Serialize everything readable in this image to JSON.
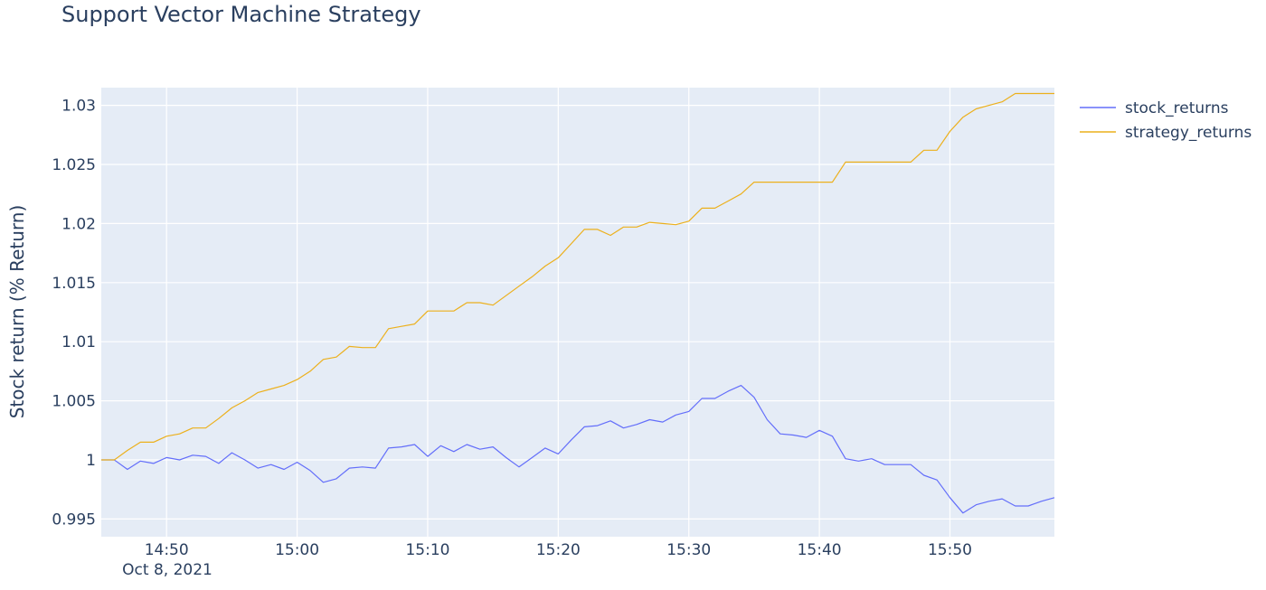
{
  "chart_data": {
    "type": "line",
    "title": "Support Vector Machine Strategy",
    "ylabel": "Stock return (% Return)",
    "xlabel": "",
    "x_start": "2021-10-08 14:45",
    "x_step_minutes": 1,
    "xlim": [
      "2021-10-08 14:45",
      "2021-10-08 15:58"
    ],
    "ylim": [
      0.9935,
      1.0315
    ],
    "x_ticks": [
      {
        "at": "2021-10-08 14:50",
        "label": "14:50"
      },
      {
        "at": "2021-10-08 15:00",
        "label": "15:00"
      },
      {
        "at": "2021-10-08 15:10",
        "label": "15:10"
      },
      {
        "at": "2021-10-08 15:20",
        "label": "15:20"
      },
      {
        "at": "2021-10-08 15:30",
        "label": "15:30"
      },
      {
        "at": "2021-10-08 15:40",
        "label": "15:40"
      },
      {
        "at": "2021-10-08 15:50",
        "label": "15:50"
      }
    ],
    "x_sublabel": "Oct 8, 2021",
    "y_ticks": [
      {
        "value": 0.995,
        "label": "0.995"
      },
      {
        "value": 1.0,
        "label": "1"
      },
      {
        "value": 1.005,
        "label": "1.005"
      },
      {
        "value": 1.01,
        "label": "1.01"
      },
      {
        "value": 1.015,
        "label": "1.015"
      },
      {
        "value": 1.02,
        "label": "1.02"
      },
      {
        "value": 1.025,
        "label": "1.025"
      },
      {
        "value": 1.03,
        "label": "1.03"
      }
    ],
    "grid": true,
    "legend_position": "top-right",
    "series": [
      {
        "name": "stock_returns",
        "color": "#636efa",
        "values": [
          1.0,
          1.0,
          0.9992,
          0.9999,
          0.9997,
          1.0002,
          1.0,
          1.0004,
          1.0003,
          0.9997,
          1.0006,
          1.0,
          0.9993,
          0.9996,
          0.9992,
          0.9998,
          0.9991,
          0.9981,
          0.9984,
          0.9993,
          0.9994,
          0.9993,
          1.001,
          1.0011,
          1.0013,
          1.0003,
          1.0012,
          1.0007,
          1.0013,
          1.0009,
          1.0011,
          1.0002,
          0.9994,
          1.0002,
          1.001,
          1.0005,
          1.0017,
          1.0028,
          1.0029,
          1.0033,
          1.0027,
          1.003,
          1.0034,
          1.0032,
          1.0038,
          1.0041,
          1.0052,
          1.0052,
          1.0058,
          1.0063,
          1.0053,
          1.0034,
          1.0022,
          1.0021,
          1.0019,
          1.0025,
          1.002,
          1.0001,
          0.9999,
          1.0001,
          0.9996,
          0.9996,
          0.9996,
          0.9987,
          0.9983,
          0.9968,
          0.9955,
          0.9962,
          0.9965,
          0.9967,
          0.9961,
          0.9961,
          0.9965,
          0.9968
        ]
      },
      {
        "name": "strategy_returns",
        "color": "#ecb01c",
        "values": [
          1.0,
          1.0,
          1.0008,
          1.0015,
          1.0015,
          1.002,
          1.0022,
          1.0027,
          1.0027,
          1.0035,
          1.0044,
          1.005,
          1.0057,
          1.006,
          1.0063,
          1.0068,
          1.0075,
          1.0085,
          1.0087,
          1.0096,
          1.0095,
          1.0095,
          1.0111,
          1.0113,
          1.0115,
          1.0126,
          1.0126,
          1.0126,
          1.0133,
          1.0133,
          1.0131,
          1.0139,
          1.0147,
          1.0155,
          1.0164,
          1.0171,
          1.0183,
          1.0195,
          1.0195,
          1.019,
          1.0197,
          1.0197,
          1.0201,
          1.02,
          1.0199,
          1.0202,
          1.0213,
          1.0213,
          1.0219,
          1.0225,
          1.0235,
          1.0235,
          1.0235,
          1.0235,
          1.0235,
          1.0235,
          1.0235,
          1.0252,
          1.0252,
          1.0252,
          1.0252,
          1.0252,
          1.0252,
          1.0262,
          1.0262,
          1.0278,
          1.029,
          1.0297,
          1.03,
          1.0303,
          1.031,
          1.031,
          1.031,
          1.031
        ]
      }
    ]
  }
}
